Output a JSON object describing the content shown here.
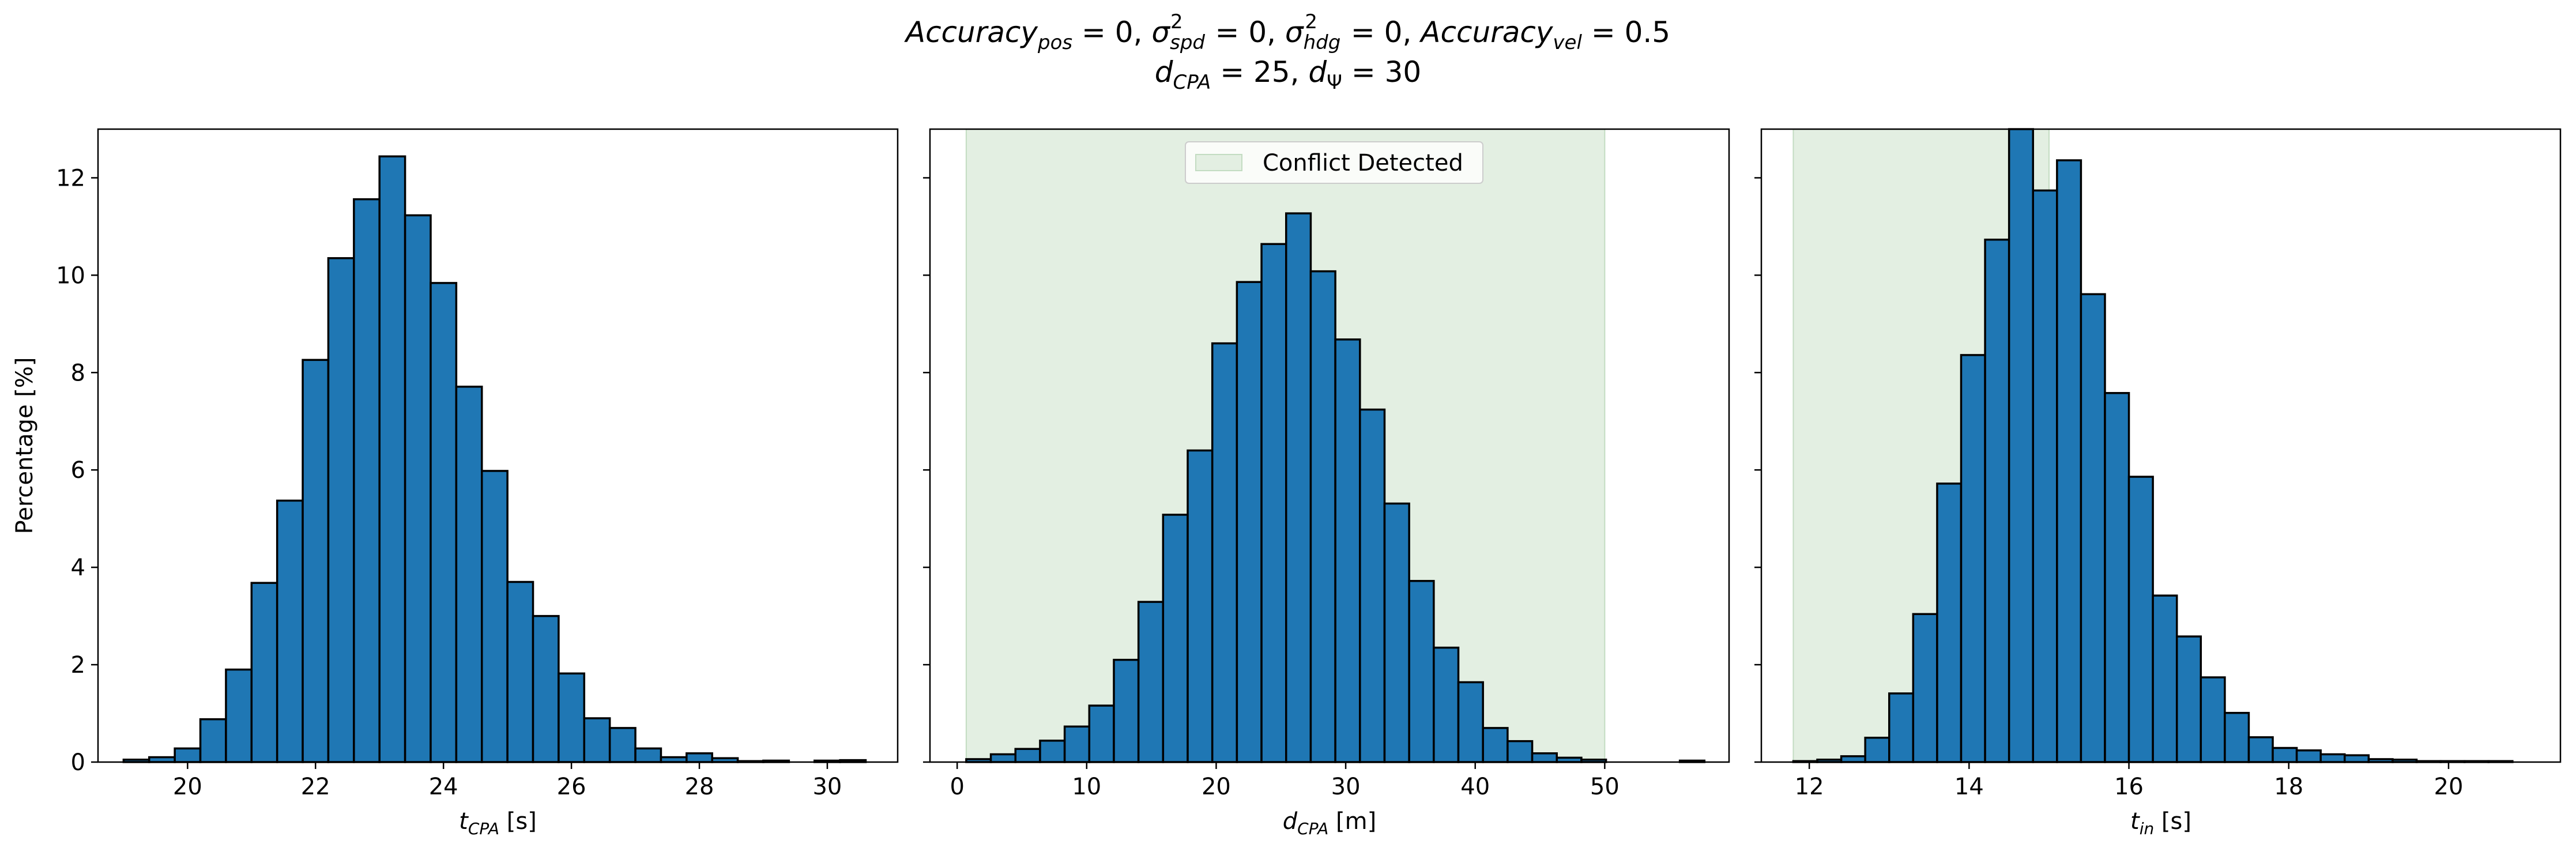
{
  "figure": {
    "title_line1": "Accuracy_pos = 0, σ²_spd = 0, σ²_hdg = 0, Accuracy_vel = 0.5",
    "title_line2": "d_CPA = 25, d_Ψ = 30"
  },
  "colors": {
    "bar": "#1f77b4",
    "bar_edge": "#000000",
    "conflict_fill": "#e3efe2",
    "conflict_edge": "#c3dcc2"
  },
  "legend": {
    "label": "Conflict Detected"
  },
  "chart_data": [
    {
      "type": "bar",
      "xlabel": "t_CPA [s]",
      "ylabel": "Percentage [%]",
      "xlim": [
        18.6,
        31.1
      ],
      "ylim": [
        0,
        13
      ],
      "xticks": [
        20,
        22,
        24,
        26,
        28,
        30
      ],
      "yticks": [
        0,
        2,
        4,
        6,
        8,
        10,
        12
      ],
      "bin_edges": [
        19.0,
        19.4,
        19.8,
        20.2,
        20.6,
        21.0,
        21.4,
        21.8,
        22.2,
        22.6,
        23.0,
        23.4,
        23.8,
        24.2,
        24.6,
        25.0,
        25.4,
        25.8,
        26.2,
        26.6,
        27.0,
        27.4,
        27.8,
        28.2,
        28.6,
        29.0,
        29.4,
        29.8,
        30.2,
        30.6
      ],
      "values": [
        0.05,
        0.1,
        0.28,
        0.88,
        1.9,
        3.68,
        5.37,
        8.26,
        10.35,
        11.56,
        12.44,
        11.23,
        9.84,
        7.71,
        5.98,
        3.7,
        3.0,
        1.82,
        0.9,
        0.7,
        0.28,
        0.1,
        0.18,
        0.08,
        0.02,
        0.03,
        0.0,
        0.03,
        0.04
      ],
      "grid": false
    },
    {
      "type": "bar",
      "xlabel": "d_CPA [m]",
      "ylim": [
        0,
        13
      ],
      "xlim": [
        -2.1,
        59.6
      ],
      "xticks": [
        0,
        10,
        20,
        30,
        40,
        50
      ],
      "bin_edges": [
        0.7,
        2.6,
        4.5,
        6.4,
        8.3,
        10.2,
        12.1,
        14.0,
        15.9,
        17.8,
        19.7,
        21.6,
        23.5,
        25.4,
        27.3,
        29.2,
        31.1,
        33.0,
        34.9,
        36.8,
        38.7,
        40.6,
        42.5,
        44.4,
        46.3,
        48.2,
        50.1,
        52.0,
        53.9,
        55.8,
        57.7
      ],
      "values": [
        0.06,
        0.16,
        0.27,
        0.44,
        0.73,
        1.16,
        2.1,
        3.29,
        5.08,
        6.4,
        8.6,
        9.86,
        10.64,
        11.27,
        10.08,
        8.68,
        7.24,
        5.31,
        3.72,
        2.35,
        1.64,
        0.7,
        0.43,
        0.18,
        0.09,
        0.05,
        0.0,
        0.0,
        0.0,
        0.03
      ],
      "conflict_region": [
        0.7,
        50.0
      ],
      "legend_position": "upper center",
      "grid": false
    },
    {
      "type": "bar",
      "xlabel": "t_in [s]",
      "ylim": [
        0,
        13
      ],
      "xlim": [
        11.4,
        21.4
      ],
      "xticks": [
        12,
        14,
        16,
        18,
        20
      ],
      "bin_edges": [
        11.8,
        12.1,
        12.4,
        12.7,
        13.0,
        13.3,
        13.6,
        13.9,
        14.2,
        14.5,
        14.8,
        15.1,
        15.4,
        15.7,
        16.0,
        16.3,
        16.6,
        16.9,
        17.2,
        17.5,
        17.8,
        18.1,
        18.4,
        18.7,
        19.0,
        19.3,
        19.6,
        19.9,
        20.2,
        20.5,
        20.8,
        21.0
      ],
      "values": [
        0.02,
        0.05,
        0.12,
        0.5,
        1.41,
        3.04,
        5.72,
        8.36,
        10.73,
        13.1,
        11.74,
        12.36,
        9.61,
        7.58,
        5.86,
        3.42,
        2.58,
        1.74,
        1.01,
        0.51,
        0.29,
        0.24,
        0.16,
        0.14,
        0.06,
        0.05,
        0.02,
        0.02,
        0.02,
        0.02,
        0.0
      ],
      "conflict_region": [
        11.8,
        15.0
      ],
      "grid": false
    }
  ]
}
